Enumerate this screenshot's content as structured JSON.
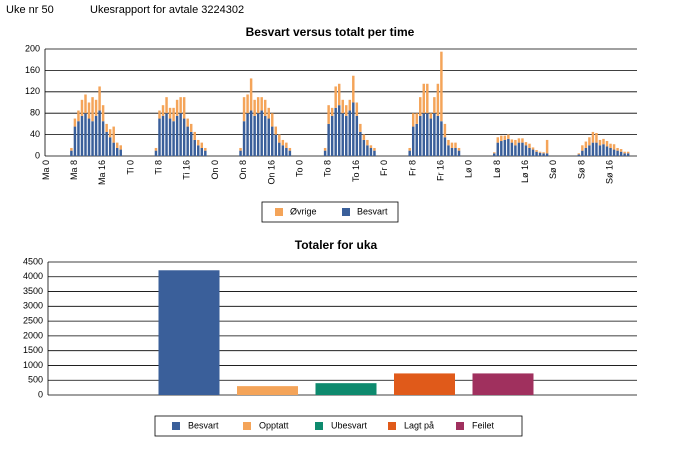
{
  "header": {
    "week": "Uke nr 50",
    "title": "Ukesrapport for avtale 3224302"
  },
  "chart_data": [
    {
      "type": "bar",
      "stacked": true,
      "title": "Besvart versus totalt per time",
      "categories": [
        "Ma 0",
        null,
        null,
        null,
        null,
        null,
        null,
        null,
        "Ma 8",
        null,
        null,
        null,
        null,
        null,
        null,
        null,
        "Ma 16",
        null,
        null,
        null,
        null,
        null,
        null,
        null,
        "Ti 0",
        null,
        null,
        null,
        null,
        null,
        null,
        null,
        "Ti 8",
        null,
        null,
        null,
        null,
        null,
        null,
        null,
        "Ti 16",
        null,
        null,
        null,
        null,
        null,
        null,
        null,
        "On 0",
        null,
        null,
        null,
        null,
        null,
        null,
        null,
        "On 8",
        null,
        null,
        null,
        null,
        null,
        null,
        null,
        "On 16",
        null,
        null,
        null,
        null,
        null,
        null,
        null,
        "To 0",
        null,
        null,
        null,
        null,
        null,
        null,
        null,
        "To 8",
        null,
        null,
        null,
        null,
        null,
        null,
        null,
        "To 16",
        null,
        null,
        null,
        null,
        null,
        null,
        null,
        "Fr 0",
        null,
        null,
        null,
        null,
        null,
        null,
        null,
        "Fr 8",
        null,
        null,
        null,
        null,
        null,
        null,
        null,
        "Fr 16",
        null,
        null,
        null,
        null,
        null,
        null,
        null,
        "Lø 0",
        null,
        null,
        null,
        null,
        null,
        null,
        null,
        "Lø 8",
        null,
        null,
        null,
        null,
        null,
        null,
        null,
        "Lø 16",
        null,
        null,
        null,
        null,
        null,
        null,
        null,
        "Sø 0",
        null,
        null,
        null,
        null,
        null,
        null,
        null,
        "Sø 8",
        null,
        null,
        null,
        null,
        null,
        null,
        null,
        "Sø 16",
        null,
        null,
        null,
        null,
        null,
        null,
        null
      ],
      "series": [
        {
          "name": "Besvart",
          "color": "#3a5f9a",
          "values": [
            0,
            0,
            0,
            0,
            0,
            0,
            0,
            10,
            55,
            65,
            75,
            80,
            70,
            65,
            75,
            85,
            65,
            45,
            35,
            25,
            15,
            12,
            0,
            0,
            0,
            0,
            0,
            0,
            0,
            0,
            0,
            10,
            70,
            75,
            80,
            70,
            65,
            75,
            80,
            70,
            55,
            45,
            30,
            20,
            15,
            10,
            0,
            0,
            0,
            0,
            0,
            0,
            0,
            0,
            0,
            10,
            65,
            80,
            85,
            75,
            80,
            85,
            75,
            70,
            55,
            40,
            25,
            20,
            15,
            10,
            0,
            0,
            0,
            0,
            0,
            0,
            0,
            0,
            0,
            10,
            60,
            75,
            90,
            95,
            80,
            75,
            85,
            100,
            75,
            45,
            30,
            20,
            15,
            10,
            0,
            0,
            0,
            0,
            0,
            0,
            0,
            0,
            0,
            10,
            55,
            60,
            75,
            80,
            80,
            70,
            80,
            75,
            65,
            35,
            20,
            15,
            15,
            10,
            0,
            0,
            0,
            0,
            0,
            0,
            0,
            0,
            0,
            5,
            25,
            28,
            30,
            32,
            25,
            20,
            25,
            25,
            20,
            15,
            12,
            8,
            6,
            5,
            5,
            0,
            0,
            0,
            0,
            0,
            0,
            0,
            0,
            3,
            10,
            15,
            20,
            25,
            25,
            20,
            22,
            18,
            15,
            12,
            10,
            8,
            5,
            5,
            0,
            0
          ]
        },
        {
          "name": "Øvrige",
          "color": "#f4a459",
          "values": [
            0,
            0,
            0,
            0,
            0,
            0,
            0,
            5,
            15,
            20,
            30,
            35,
            30,
            45,
            30,
            45,
            30,
            15,
            15,
            30,
            10,
            8,
            0,
            0,
            0,
            0,
            0,
            0,
            0,
            0,
            0,
            5,
            15,
            20,
            30,
            20,
            25,
            30,
            30,
            40,
            15,
            15,
            15,
            10,
            10,
            5,
            0,
            0,
            0,
            0,
            0,
            0,
            0,
            0,
            0,
            5,
            45,
            35,
            60,
            30,
            30,
            25,
            30,
            20,
            25,
            15,
            15,
            10,
            10,
            5,
            0,
            0,
            0,
            0,
            0,
            0,
            0,
            0,
            0,
            5,
            35,
            15,
            40,
            40,
            25,
            20,
            20,
            50,
            25,
            15,
            10,
            10,
            5,
            5,
            0,
            0,
            0,
            0,
            0,
            0,
            0,
            0,
            0,
            5,
            25,
            20,
            35,
            55,
            55,
            10,
            30,
            60,
            130,
            25,
            10,
            10,
            10,
            5,
            0,
            0,
            0,
            0,
            0,
            0,
            0,
            0,
            0,
            2,
            10,
            10,
            8,
            8,
            6,
            10,
            8,
            8,
            6,
            8,
            4,
            3,
            2,
            2,
            25,
            0,
            0,
            0,
            0,
            0,
            0,
            0,
            0,
            2,
            10,
            12,
            15,
            20,
            18,
            10,
            10,
            10,
            8,
            10,
            5,
            5,
            3,
            3,
            0,
            0
          ]
        }
      ],
      "ylim": [
        0,
        200
      ],
      "yticks": [
        0,
        40,
        80,
        120,
        160,
        200
      ],
      "grid": true
    },
    {
      "type": "bar",
      "stacked": false,
      "title": "Totaler for uka",
      "series": [
        {
          "name": "Besvart",
          "color": "#3a5f9a",
          "values": [
            4220
          ]
        },
        {
          "name": "Opptatt",
          "color": "#f4a459",
          "values": [
            300
          ]
        },
        {
          "name": "Ubesvart",
          "color": "#0e8a6e",
          "values": [
            400
          ]
        },
        {
          "name": "Lagt på",
          "color": "#e05a1a",
          "values": [
            730
          ]
        },
        {
          "name": "Feilet",
          "color": "#a0305e",
          "values": [
            730
          ]
        }
      ],
      "ylim": [
        0,
        4500
      ],
      "yticks": [
        0,
        500,
        1000,
        1500,
        2000,
        2500,
        3000,
        3500,
        4000,
        4500
      ],
      "grid": true
    }
  ]
}
